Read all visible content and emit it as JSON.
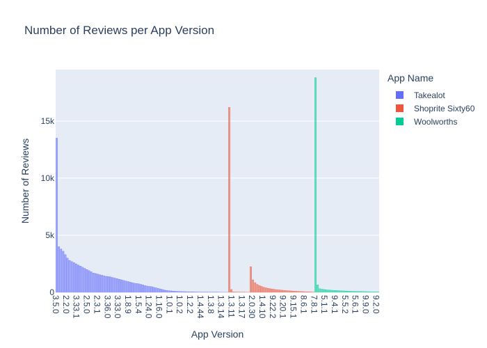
{
  "title": "Number of Reviews per App Version",
  "legend": {
    "title": "App Name",
    "items": [
      {
        "label": "Takealot",
        "color": "#636efa"
      },
      {
        "label": "Shoprite Sixty60",
        "color": "#ef553b"
      },
      {
        "label": "Woolworths",
        "color": "#00cc96"
      }
    ]
  },
  "chart_data": {
    "type": "bar",
    "title": "Number of Reviews per App Version",
    "xlabel": "App Version",
    "ylabel": "Number of Reviews",
    "ylim": [
      0,
      19500
    ],
    "yticks": [
      0,
      5000,
      10000,
      15000
    ],
    "ytick_labels": [
      "0",
      "5k",
      "10k",
      "15k"
    ],
    "xtick_labels": [
      "3.5.0",
      "2.2.0",
      "3.33.1",
      "2.5.0",
      "2.3.1",
      "3.36.0",
      "3.33.0",
      "1.8.9",
      "1.5.4",
      "1.24.0",
      "1.16.0",
      "1.0.1",
      "1.0.2",
      "1.2.2",
      "1.4.44",
      "1.3.8",
      "1.3.14",
      "1.3.11",
      "1.3.17",
      "2.0.30",
      "1.4.10",
      "9.22.2",
      "9.20.1",
      "9.15.1",
      "8.6.1",
      "7.8.1",
      "5.1.1",
      "9.4.1",
      "5.5.2",
      "5.6.1",
      "9.9.0",
      "9.2.0"
    ],
    "grid": true,
    "legend_position": "right",
    "series": [
      {
        "name": "Takealot",
        "color": "#636efa",
        "values": [
          13500,
          4000,
          3800,
          3600,
          3300,
          3000,
          2800,
          2700,
          2600,
          2500,
          2400,
          2300,
          2200,
          2100,
          2000,
          1900,
          1800,
          1700,
          1650,
          1600,
          1550,
          1500,
          1450,
          1400,
          1380,
          1350,
          1300,
          1250,
          1200,
          1150,
          1100,
          1050,
          1000,
          950,
          900,
          850,
          800,
          780,
          750,
          700,
          650,
          600,
          550,
          520,
          500,
          450,
          400,
          350,
          300,
          250,
          200,
          170,
          150,
          130,
          110,
          100,
          90,
          80,
          70,
          60,
          55,
          50,
          45,
          40,
          35,
          30,
          28,
          26,
          24,
          22,
          20,
          18,
          16,
          14,
          12,
          10,
          9,
          8,
          7,
          6
        ]
      },
      {
        "name": "Shoprite Sixty60",
        "color": "#ef553b",
        "values": [
          16200,
          250,
          40,
          30,
          25,
          20,
          15,
          10,
          8,
          6,
          2250,
          1100,
          850,
          700,
          600,
          520,
          450,
          400,
          360,
          320,
          290,
          260,
          240,
          220,
          200,
          180,
          165,
          150,
          135,
          120,
          110,
          100,
          90,
          80,
          70,
          60,
          50,
          40,
          30,
          20
        ]
      },
      {
        "name": "Woolworths",
        "color": "#00cc96",
        "values": [
          18800,
          650,
          320,
          280,
          250,
          230,
          210,
          195,
          180,
          170,
          160,
          150,
          140,
          130,
          120,
          110,
          100,
          95,
          90,
          85,
          80,
          75,
          70,
          65,
          60,
          55,
          50,
          45,
          40,
          35
        ]
      }
    ]
  }
}
